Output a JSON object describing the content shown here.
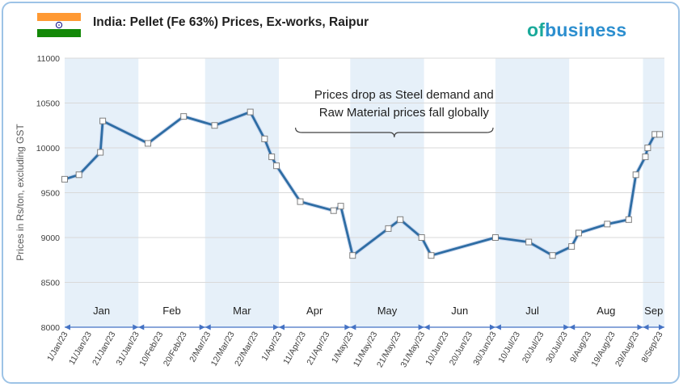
{
  "header": {
    "title": "India: Pellet (Fe 63%) Prices, Ex-works, Raipur",
    "logo_of": "of",
    "logo_rest": "usiness",
    "colors": {
      "saffron": "#ff9933",
      "green": "#138808",
      "chakra": "#000080"
    }
  },
  "chart_data": {
    "type": "line",
    "title": "India: Pellet (Fe 63%) Prices, Ex-works, Raipur",
    "ylabel": "Prices in Rs/ton, excluding GST",
    "xlabel": "",
    "ylim": [
      8000,
      11000
    ],
    "yticks": [
      8000,
      8500,
      9000,
      9500,
      10000,
      10500,
      11000
    ],
    "xticks": [
      "1/Jan/23",
      "11/Jan/23",
      "21/Jan/23",
      "31/Jan/23",
      "10/Feb/23",
      "20/Feb/23",
      "2/Mar/23",
      "12/Mar/23",
      "22/Mar/23",
      "1/Apr/23",
      "11/Apr/23",
      "21/Apr/23",
      "1/May/23",
      "11/May/23",
      "21/May/23",
      "31/May/23",
      "10/Jun/23",
      "20/Jun/23",
      "30/Jun/23",
      "10/Jul/23",
      "20/Jul/23",
      "30/Jul/23",
      "9/Aug/23",
      "19/Aug/23",
      "29/Aug/23",
      "8/Sep/23"
    ],
    "x_range": [
      "2023-01-01",
      "2023-09-10"
    ],
    "months": [
      {
        "label": "Jan",
        "start": "2023-01-01",
        "end": "2023-02-01",
        "shaded": true
      },
      {
        "label": "Feb",
        "start": "2023-02-01",
        "end": "2023-03-01",
        "shaded": false
      },
      {
        "label": "Mar",
        "start": "2023-03-01",
        "end": "2023-04-01",
        "shaded": true
      },
      {
        "label": "Apr",
        "start": "2023-04-01",
        "end": "2023-05-01",
        "shaded": false
      },
      {
        "label": "May",
        "start": "2023-05-01",
        "end": "2023-06-01",
        "shaded": true
      },
      {
        "label": "Jun",
        "start": "2023-06-01",
        "end": "2023-07-01",
        "shaded": false
      },
      {
        "label": "Jul",
        "start": "2023-07-01",
        "end": "2023-08-01",
        "shaded": true
      },
      {
        "label": "Aug",
        "start": "2023-08-01",
        "end": "2023-09-01",
        "shaded": false
      },
      {
        "label": "Sep",
        "start": "2023-09-01",
        "end": "2023-09-10",
        "shaded": true
      }
    ],
    "annotation": {
      "text_line1": "Prices drop as Steel demand and",
      "text_line2": "Raw Material prices fall globally",
      "span": [
        "2023-04-08",
        "2023-06-30"
      ]
    },
    "series": [
      {
        "points": [
          [
            "2023-01-01",
            9650
          ],
          [
            "2023-01-07",
            9700
          ],
          [
            "2023-01-16",
            9950
          ],
          [
            "2023-01-17",
            10300
          ],
          [
            "2023-02-05",
            10050
          ],
          [
            "2023-02-20",
            10350
          ],
          [
            "2023-03-05",
            10250
          ],
          [
            "2023-03-20",
            10400
          ],
          [
            "2023-03-26",
            10100
          ],
          [
            "2023-03-29",
            9900
          ],
          [
            "2023-03-31",
            9800
          ],
          [
            "2023-04-10",
            9400
          ],
          [
            "2023-04-24",
            9300
          ],
          [
            "2023-04-27",
            9350
          ],
          [
            "2023-05-02",
            8800
          ],
          [
            "2023-05-17",
            9100
          ],
          [
            "2023-05-22",
            9200
          ],
          [
            "2023-05-31",
            9000
          ],
          [
            "2023-06-04",
            8800
          ],
          [
            "2023-07-01",
            9000
          ],
          [
            "2023-07-15",
            8950
          ],
          [
            "2023-07-25",
            8800
          ],
          [
            "2023-08-02",
            8900
          ],
          [
            "2023-08-05",
            9050
          ],
          [
            "2023-08-17",
            9150
          ],
          [
            "2023-08-26",
            9200
          ],
          [
            "2023-08-29",
            9700
          ],
          [
            "2023-09-02",
            9900
          ],
          [
            "2023-09-03",
            10000
          ],
          [
            "2023-09-06",
            10150
          ],
          [
            "2023-09-08",
            10150
          ]
        ],
        "color": "#2e6da4"
      }
    ],
    "grid": true,
    "legend": "none"
  }
}
